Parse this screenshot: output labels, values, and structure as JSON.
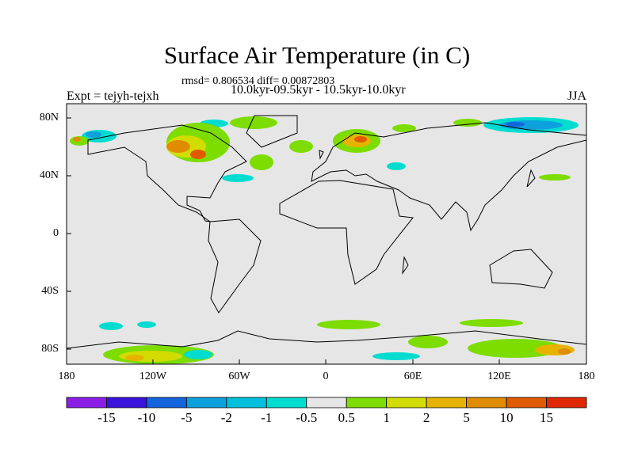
{
  "title": "Surface Air Temperature (in C)",
  "stats": "rmsd= 0.806534 diff= 0.00872803",
  "period": "10.0kyr-09.5kyr - 10.5kyr-10.0kyr",
  "experiment": "Expt = tejyh-tejxh",
  "season": "JJA",
  "lat_ticks": [
    "80N",
    "40N",
    "0",
    "40S",
    "80S"
  ],
  "lon_ticks": [
    "180",
    "120W",
    "60W",
    "0",
    "60E",
    "120E",
    "180"
  ],
  "colorbar": {
    "labels": [
      "-15",
      "-10",
      "-5",
      "-2",
      "-1",
      "-0.5",
      "0.5",
      "1",
      "2",
      "5",
      "10",
      "15"
    ],
    "colors": [
      "#8a1ee6",
      "#3a14dc",
      "#1464dc",
      "#0ca0dc",
      "#00c0dc",
      "#00dcd0",
      "#e6e6e6",
      "#7ddc00",
      "#d2dc00",
      "#e6b400",
      "#e08c00",
      "#e05a00",
      "#e02800"
    ]
  },
  "map_background": "#e6e6e6"
}
